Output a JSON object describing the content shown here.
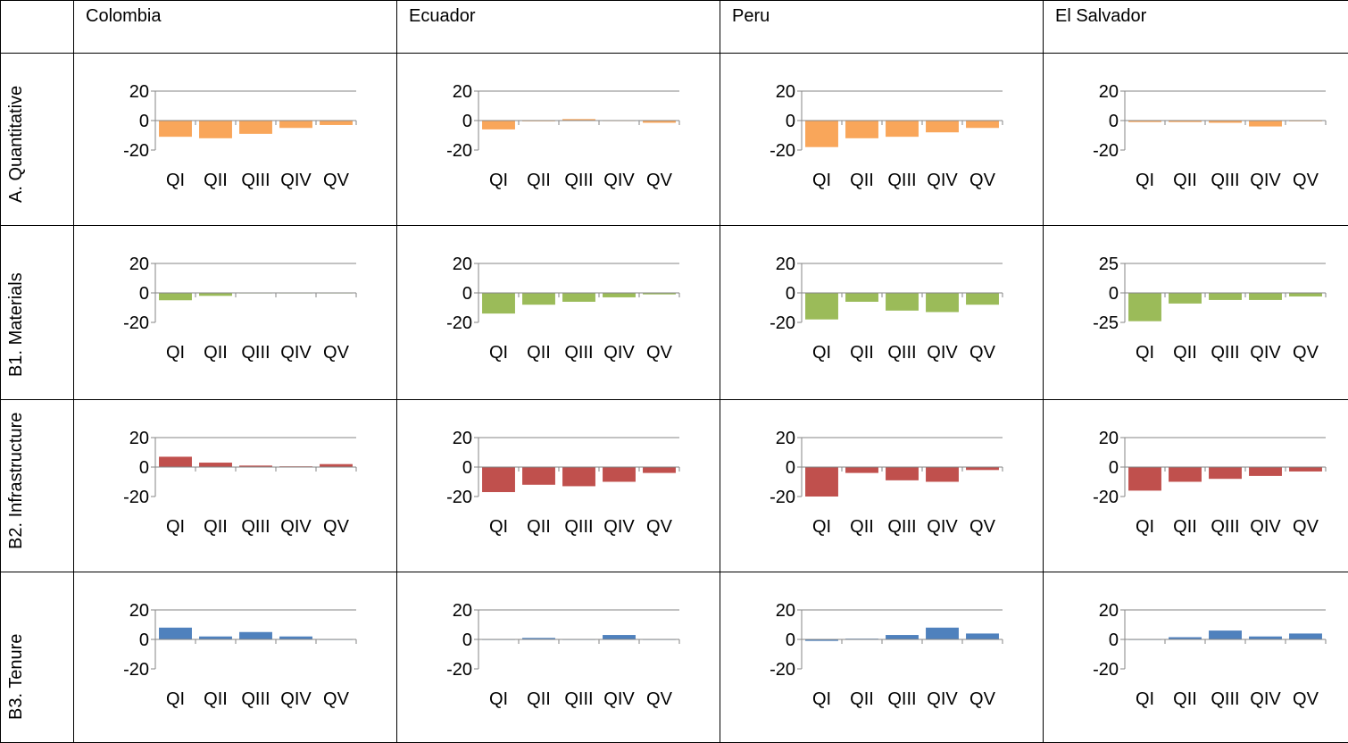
{
  "columns": [
    "Colombia",
    "Ecuador",
    "Peru",
    "El Salvador"
  ],
  "colors": {
    "A. Quantitative": "#f9a65a",
    "B1. Materials": "#9bbb59",
    "B2. Infrastructure": "#c0504d",
    "B3. Tenure": "#4f81bd"
  },
  "chart_data": [
    {
      "type": "bar",
      "row": "A. Quantitative",
      "country": "Colombia",
      "categories": [
        "QI",
        "QII",
        "QIII",
        "QIV",
        "QV"
      ],
      "values": [
        -11,
        -12,
        -9,
        -5,
        -3
      ],
      "yticks": [
        20,
        0,
        -20
      ],
      "ylim": [
        -20,
        20
      ]
    },
    {
      "type": "bar",
      "row": "A. Quantitative",
      "country": "Ecuador",
      "categories": [
        "QI",
        "QII",
        "QIII",
        "QIV",
        "QV"
      ],
      "values": [
        -6,
        -0.5,
        1,
        -0.3,
        -1.5
      ],
      "yticks": [
        20,
        0,
        -20
      ],
      "ylim": [
        -20,
        20
      ]
    },
    {
      "type": "bar",
      "row": "A. Quantitative",
      "country": "Peru",
      "categories": [
        "QI",
        "QII",
        "QIII",
        "QIV",
        "QV"
      ],
      "values": [
        -18,
        -12,
        -11,
        -8,
        -5
      ],
      "yticks": [
        20,
        0,
        -20
      ],
      "ylim": [
        -20,
        20
      ]
    },
    {
      "type": "bar",
      "row": "A. Quantitative",
      "country": "El Salvador",
      "categories": [
        "QI",
        "QII",
        "QIII",
        "QIV",
        "QV"
      ],
      "values": [
        -1,
        -1,
        -1.5,
        -4,
        -0.5
      ],
      "yticks": [
        20,
        0,
        -20
      ],
      "ylim": [
        -20,
        20
      ]
    },
    {
      "type": "bar",
      "row": "B1. Materials",
      "country": "Colombia",
      "categories": [
        "QI",
        "QII",
        "QIII",
        "QIV",
        "QV"
      ],
      "values": [
        -5,
        -2,
        0,
        0,
        0
      ],
      "yticks": [
        20,
        0,
        -20
      ],
      "ylim": [
        -20,
        20
      ]
    },
    {
      "type": "bar",
      "row": "B1. Materials",
      "country": "Ecuador",
      "categories": [
        "QI",
        "QII",
        "QIII",
        "QIV",
        "QV"
      ],
      "values": [
        -14,
        -8,
        -6,
        -3,
        -1
      ],
      "yticks": [
        20,
        0,
        -20
      ],
      "ylim": [
        -20,
        20
      ]
    },
    {
      "type": "bar",
      "row": "B1. Materials",
      "country": "Peru",
      "categories": [
        "QI",
        "QII",
        "QIII",
        "QIV",
        "QV"
      ],
      "values": [
        -18,
        -6,
        -12,
        -13,
        -8
      ],
      "yticks": [
        20,
        0,
        -20
      ],
      "ylim": [
        -20,
        20
      ]
    },
    {
      "type": "bar",
      "row": "B1. Materials",
      "country": "El Salvador",
      "categories": [
        "QI",
        "QII",
        "QIII",
        "QIV",
        "QV"
      ],
      "values": [
        -24,
        -9,
        -6,
        -6,
        -3
      ],
      "yticks": [
        25,
        0,
        -25
      ],
      "ylim": [
        -25,
        25
      ]
    },
    {
      "type": "bar",
      "row": "B2. Infrastructure",
      "country": "Colombia",
      "categories": [
        "QI",
        "QII",
        "QIII",
        "QIV",
        "QV"
      ],
      "values": [
        7,
        3,
        1,
        0.5,
        2
      ],
      "yticks": [
        20,
        0,
        -20
      ],
      "ylim": [
        -20,
        20
      ]
    },
    {
      "type": "bar",
      "row": "B2. Infrastructure",
      "country": "Ecuador",
      "categories": [
        "QI",
        "QII",
        "QIII",
        "QIV",
        "QV"
      ],
      "values": [
        -17,
        -12,
        -13,
        -10,
        -4
      ],
      "yticks": [
        20,
        0,
        -20
      ],
      "ylim": [
        -20,
        20
      ]
    },
    {
      "type": "bar",
      "row": "B2. Infrastructure",
      "country": "Peru",
      "categories": [
        "QI",
        "QII",
        "QIII",
        "QIV",
        "QV"
      ],
      "values": [
        -20,
        -4,
        -9,
        -10,
        -2
      ],
      "yticks": [
        20,
        0,
        -20
      ],
      "ylim": [
        -20,
        20
      ]
    },
    {
      "type": "bar",
      "row": "B2. Infrastructure",
      "country": "El Salvador",
      "categories": [
        "QI",
        "QII",
        "QIII",
        "QIV",
        "QV"
      ],
      "values": [
        -16,
        -10,
        -8,
        -6,
        -3
      ],
      "yticks": [
        20,
        0,
        -20
      ],
      "ylim": [
        -20,
        20
      ]
    },
    {
      "type": "bar",
      "row": "B3. Tenure",
      "country": "Colombia",
      "categories": [
        "QI",
        "QII",
        "QIII",
        "QIV",
        "QV"
      ],
      "values": [
        8,
        2,
        5,
        2,
        0
      ],
      "yticks": [
        20,
        0,
        -20
      ],
      "ylim": [
        -20,
        20
      ]
    },
    {
      "type": "bar",
      "row": "B3. Tenure",
      "country": "Ecuador",
      "categories": [
        "QI",
        "QII",
        "QIII",
        "QIV",
        "QV"
      ],
      "values": [
        0,
        1,
        0,
        3,
        0
      ],
      "yticks": [
        20,
        0,
        -20
      ],
      "ylim": [
        -20,
        20
      ]
    },
    {
      "type": "bar",
      "row": "B3. Tenure",
      "country": "Peru",
      "categories": [
        "QI",
        "QII",
        "QIII",
        "QIV",
        "QV"
      ],
      "values": [
        -1,
        0.5,
        3,
        8,
        4
      ],
      "yticks": [
        20,
        0,
        -20
      ],
      "ylim": [
        -20,
        20
      ]
    },
    {
      "type": "bar",
      "row": "B3. Tenure",
      "country": "El Salvador",
      "categories": [
        "QI",
        "QII",
        "QIII",
        "QIV",
        "QV"
      ],
      "values": [
        0,
        1.5,
        6,
        2,
        4
      ],
      "yticks": [
        20,
        0,
        -20
      ],
      "ylim": [
        -20,
        20
      ]
    }
  ]
}
